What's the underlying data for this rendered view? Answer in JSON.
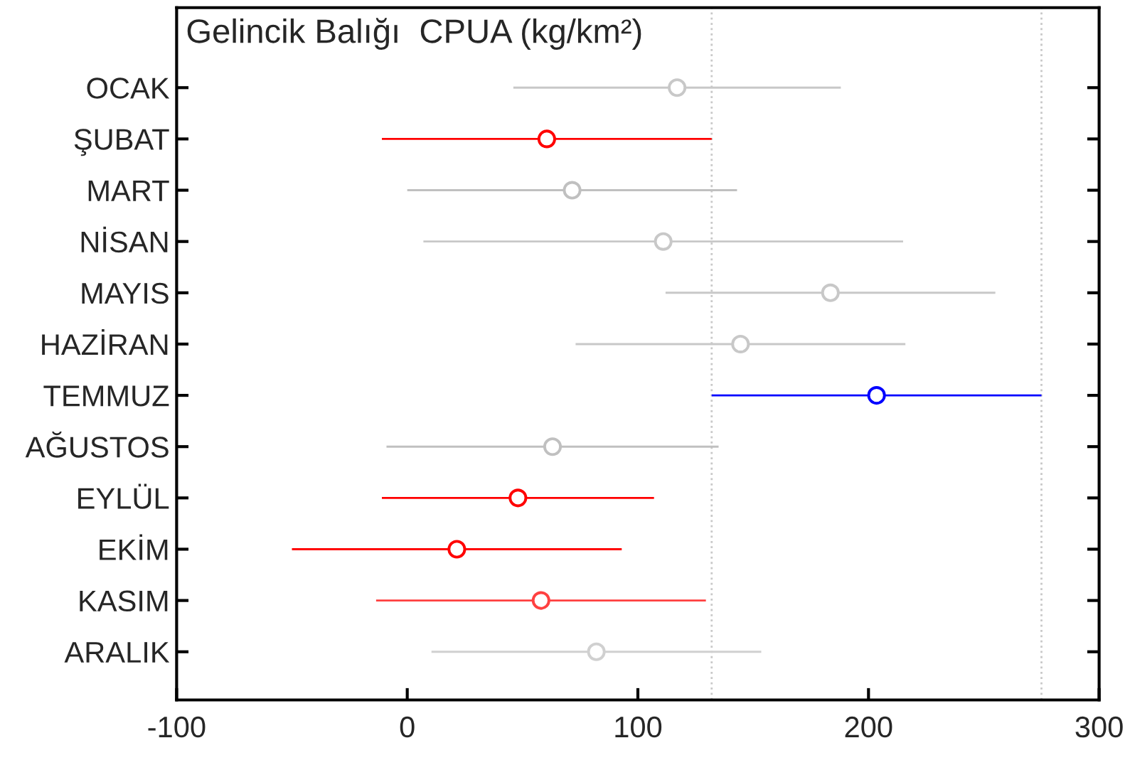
{
  "chart_data": {
    "type": "bar",
    "orientation": "horizontal",
    "title": "Gelincik Balığı  CPUA (kg/km²)",
    "categories": [
      "OCAK",
      "ŞUBAT",
      "MART",
      "NİSAN",
      "MAYIS",
      "HAZİRAN",
      "TEMMUZ",
      "AĞUSTOS",
      "EYLÜL",
      "EKİM",
      "KASIM",
      "ARALIK"
    ],
    "series": [
      {
        "base": [
          46,
          -11,
          0,
          7,
          112,
          73,
          132,
          -9,
          -11,
          -50,
          -13.5,
          10.5
        ],
        "values": [
          142,
          143,
          143,
          208,
          143,
          143,
          143,
          144,
          118,
          143,
          143,
          143
        ],
        "colors": [
          "#c8c8c8",
          "#ff0000",
          "#c0c0c0",
          "#c8c8c8",
          "#c8c8c8",
          "#c8c8c8",
          "#0000ff",
          "#c0c0c0",
          "#ff0000",
          "#ff0000",
          "#ff4040",
          "#d0d0d0"
        ]
      },
      {
        "type": "scatter",
        "values": [
          117,
          60.5,
          71.5,
          111,
          183.5,
          144.5,
          203.5,
          63,
          48,
          21.5,
          58,
          82
        ],
        "colors": [
          "#c8c8c8",
          "#ff0000",
          "#c0c0c0",
          "#c8c8c8",
          "#c8c8c8",
          "#c8c8c8",
          "#0000ff",
          "#c0c0c0",
          "#ff0000",
          "#ff0000",
          "#ff4040",
          "#d0d0d0"
        ]
      }
    ],
    "xlim": [
      -100,
      300
    ],
    "xticks": [
      -100,
      0,
      100,
      200,
      300
    ],
    "ref_lines": [
      {
        "axis": "x",
        "value": 132,
        "color": "#c8c8c8",
        "line_style": "dotted"
      },
      {
        "axis": "x",
        "value": 275,
        "color": "#c8c8c8",
        "line_style": "dotted"
      }
    ],
    "marker": "circle",
    "grid": false
  }
}
